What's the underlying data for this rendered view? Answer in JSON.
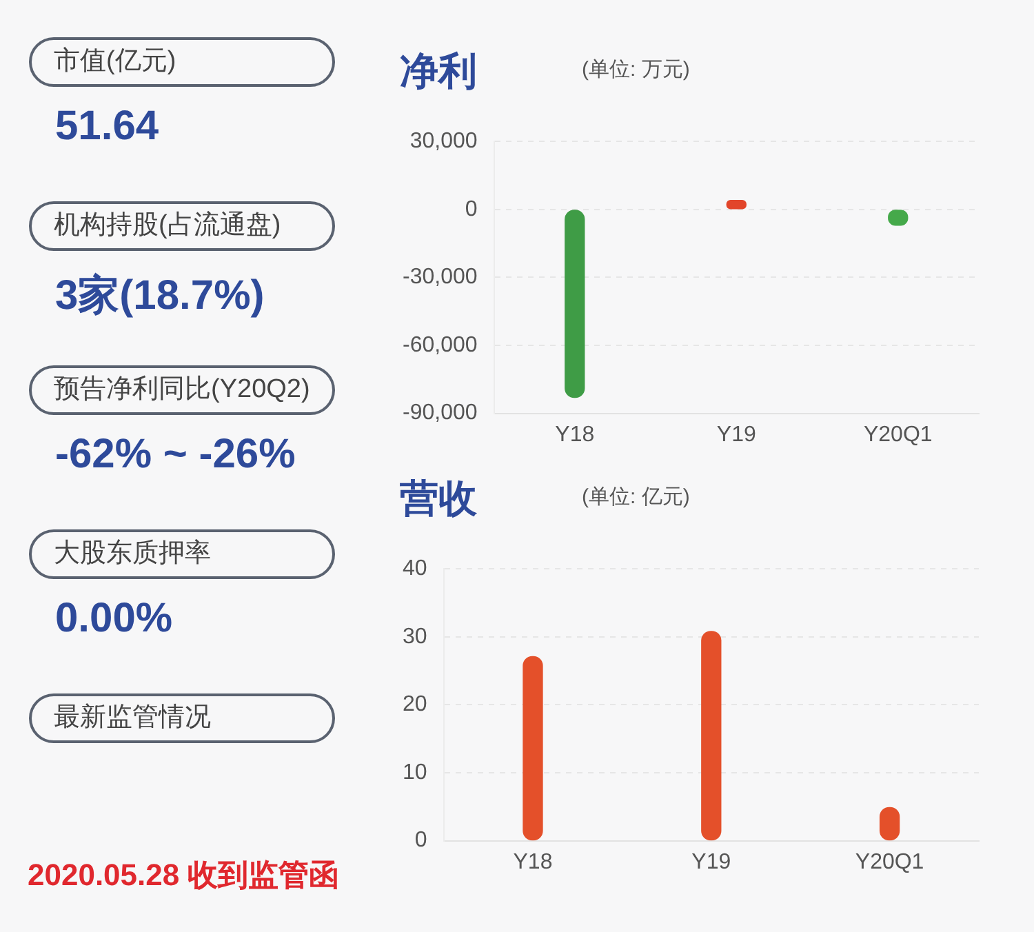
{
  "chart_data": [
    {
      "type": "other",
      "annotations": [
        "市值(亿元)",
        "51.64",
        "机构持股(占流通盘)",
        "3家(18.7%)",
        "预告净利同比(Y20Q2)",
        "-62% ~ -26%",
        "大股东质押率",
        "0.00%",
        "最新监管情况",
        "2020.05.28 收到监管函"
      ]
    },
    {
      "type": "bar",
      "title": "净利",
      "subtitle": "(单位: 万元)",
      "categories": [
        "Y18",
        "Y19",
        "Y20Q1"
      ],
      "values": [
        -83000,
        4000,
        -7000
      ],
      "colors": [
        "#3f9c46",
        "#e2452a",
        "#45a94a"
      ],
      "ylim": [
        -90000,
        30000
      ],
      "yticks": [
        {
          "value": 30000,
          "label": "30,000"
        },
        0,
        {
          "value": -30000,
          "label": "-30,000"
        },
        {
          "value": -60000,
          "label": "-60,000"
        },
        {
          "value": -90000,
          "label": "-90,000"
        }
      ],
      "grid": "y",
      "legend": false
    },
    {
      "type": "bar",
      "title": "营收",
      "subtitle": "(单位: 亿元)",
      "categories": [
        "Y18",
        "Y19",
        "Y20Q1"
      ],
      "values": [
        27.1,
        30.8,
        4.9
      ],
      "color": "#e4502a",
      "ylim": [
        0,
        40
      ],
      "yticks": [
        0,
        10,
        20,
        30,
        40
      ],
      "grid": "y",
      "legend": false
    }
  ]
}
